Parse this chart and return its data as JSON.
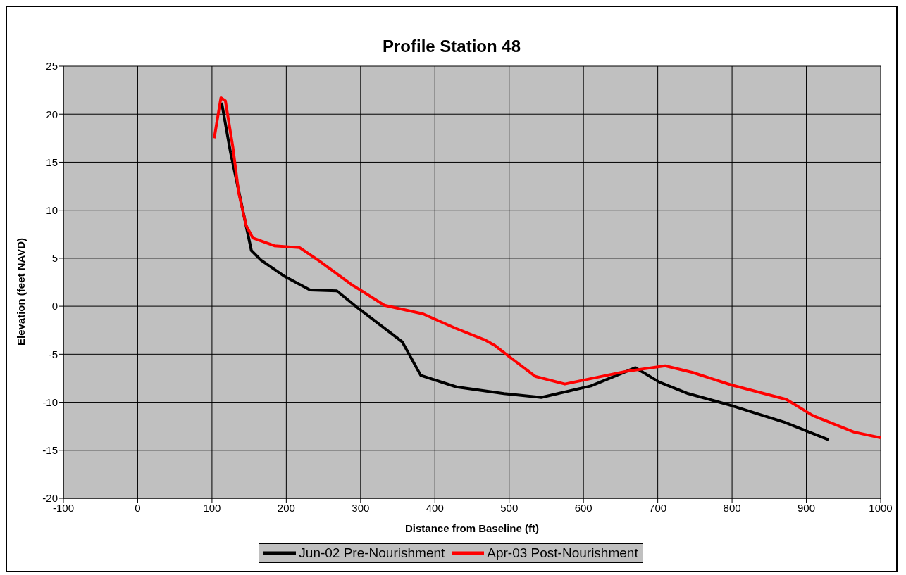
{
  "chart_data": {
    "type": "line",
    "title": "Profile Station 48",
    "xlabel": "Distance from Baseline (ft)",
    "ylabel": "Elevation (feet NAVD)",
    "xlim": [
      -100,
      1000
    ],
    "xticks": [
      -100,
      0,
      100,
      200,
      300,
      400,
      500,
      600,
      700,
      800,
      900,
      1000
    ],
    "ylim": [
      -20,
      25
    ],
    "yticks": [
      -20,
      -15,
      -10,
      -5,
      0,
      5,
      10,
      15,
      20,
      25
    ],
    "grid": true,
    "legend": "bottom",
    "marker": "none",
    "line_style": "solid",
    "series": [
      {
        "name": "Jun-02 Pre-Nourishment",
        "color": "#000000",
        "x": [
          113,
          125,
          153,
          166,
          198,
          232,
          268,
          295,
          356,
          381,
          429,
          493,
          543,
          610,
          670,
          702,
          741,
          797,
          871,
          930
        ],
        "values": [
          21.2,
          16,
          5.8,
          4.8,
          3.1,
          1.7,
          1.6,
          -0.1,
          -3.7,
          -7.2,
          -8.4,
          -9.1,
          -9.5,
          -8.3,
          -6.4,
          -7.9,
          -9.1,
          -10.3,
          -12.1,
          -13.9
        ]
      },
      {
        "name": "Apr-03 Post-Nourishment",
        "color": "#ff0000",
        "x": [
          103,
          112,
          118,
          128,
          136,
          146,
          155,
          184,
          218,
          243,
          287,
          332,
          384,
          428,
          467,
          481,
          506,
          535,
          575,
          656,
          710,
          747,
          799,
          873,
          909,
          964,
          1000
        ],
        "values": [
          17.5,
          21.7,
          21.4,
          16.6,
          11.8,
          8.4,
          7.1,
          6.3,
          6.1,
          4.8,
          2.3,
          0.1,
          -0.8,
          -2.3,
          -3.5,
          -4.1,
          -5.6,
          -7.3,
          -8.1,
          -6.8,
          -6.2,
          -6.9,
          -8.2,
          -9.7,
          -11.4,
          -13.1,
          -13.7
        ]
      }
    ]
  }
}
